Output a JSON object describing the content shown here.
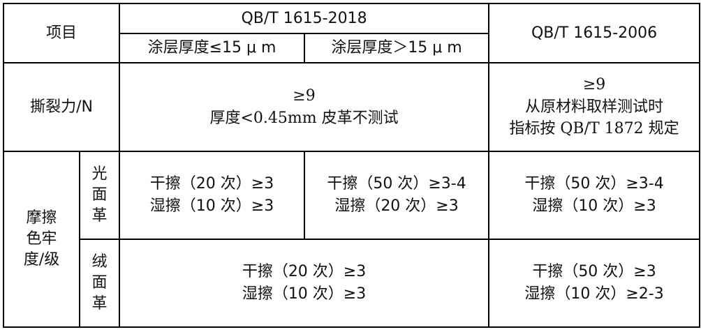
{
  "header": {
    "item": "项目",
    "std_2018": "QB/T 1615-2018",
    "std_2006": "QB/T 1615-2006",
    "coat_thin": "涂层厚度≤15 μ m",
    "coat_thick": "涂层厚度＞15 μ m"
  },
  "tear": {
    "label": "撕裂力/N",
    "v2018_line1": "≥9",
    "v2018_line2": "厚度<0.45mm 皮革不测试",
    "v2006_line1": "≥9",
    "v2006_line2": "从原材料取样测试时",
    "v2006_line3": "指标按 QB/T 1872 规定"
  },
  "rub": {
    "label_line1": "摩擦",
    "label_line2": "色牢",
    "label_line3": "度/级",
    "smooth": {
      "label": [
        "光",
        "面",
        "革"
      ],
      "thin_dry": "干擦（20 次）≥3",
      "thin_wet": "湿擦（10 次）≥3",
      "thick_dry": "干擦（50 次）≥3-4",
      "thick_wet": "湿擦（20 次）≥3",
      "v2006_dry": "干擦（50 次）≥3-4",
      "v2006_wet": "湿擦（10 次）≥3"
    },
    "suede": {
      "label": [
        "绒",
        "面",
        "革"
      ],
      "v2018_dry": "干擦（20 次）≥3",
      "v2018_wet": "湿擦（10 次）≥3",
      "v2006_dry": "干擦（50 次）≥3",
      "v2006_wet": "湿擦（10 次）≥2-3"
    }
  }
}
